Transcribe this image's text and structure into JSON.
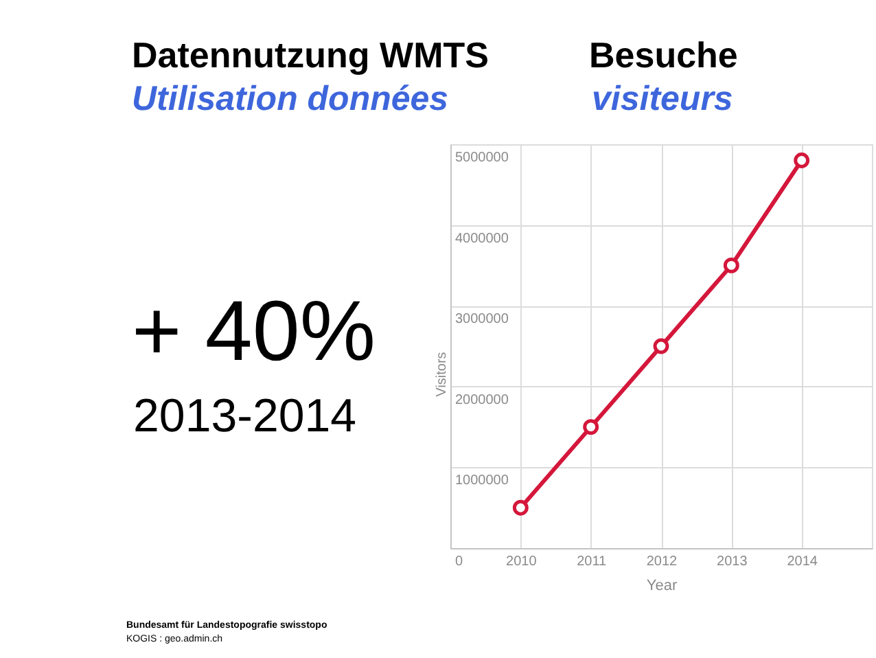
{
  "chart_data": {
    "type": "line",
    "title": "Datennutzung WMTS",
    "subtitle": "Utilisation données",
    "xlabel": "Year",
    "ylabel": "Visitors",
    "x": [
      2010,
      2011,
      2012,
      2013,
      2014
    ],
    "series": [
      {
        "color": "#d4173b",
        "values": [
          500000,
          1500000,
          2500000,
          3500000,
          4800000
        ]
      }
    ],
    "xlim": [
      2009,
      2015
    ],
    "xticks": [
      2010,
      2011,
      2012,
      2013,
      2014
    ],
    "ylim": [
      0,
      5000000
    ],
    "yticks": [
      0,
      1000000,
      2000000,
      3000000,
      4000000,
      5000000
    ],
    "grid": true,
    "marker": "circle",
    "line_style": "solid",
    "annotations": [
      "Besuche",
      "visiteurs",
      "+ 40%",
      "2013-2014",
      "Bundesamt für Landestopografie swisstopo",
      "KOGIS : geo.admin.ch"
    ]
  }
}
